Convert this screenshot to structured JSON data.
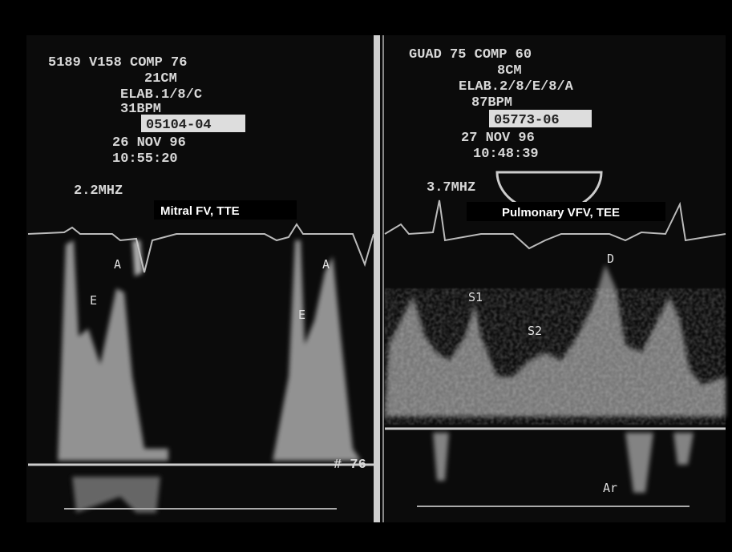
{
  "panels": [
    {
      "caption": "Mitral FV, TTE",
      "screen_text": [
        "5189 V158 COMP 76",
        "21CM",
        "ELAB.1/8/C",
        "31BPM",
        "05104-04",
        "26 NOV 96",
        "10:55:20",
        "2.2MHZ",
        "# 76"
      ],
      "wave_labels": [
        "A",
        "E",
        "A",
        "E"
      ]
    },
    {
      "caption": "Pulmonary VFV, TEE",
      "screen_text": [
        "GUAD 75 COMP 60",
        "8CM",
        "ELAB.2/8/E/8/A",
        "87BPM",
        "05773-06",
        "27 NOV 96",
        "10:48:39",
        "3.7MHZ"
      ],
      "wave_labels": [
        "S1",
        "S2",
        "D",
        "Ar"
      ]
    }
  ]
}
